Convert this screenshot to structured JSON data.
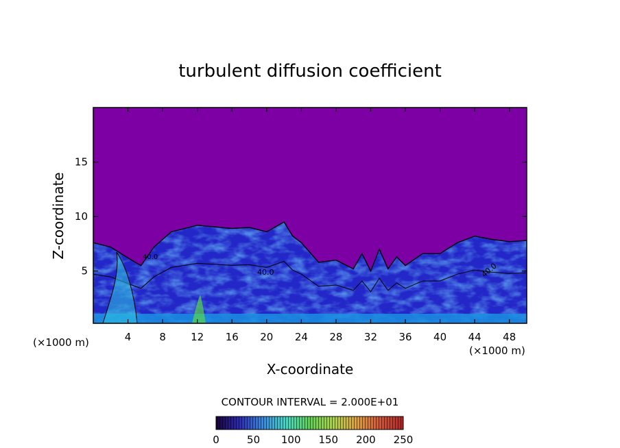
{
  "chart_data": {
    "type": "heatmap",
    "title": "turbulent diffusion coefficient",
    "xlabel": "X-coordinate",
    "ylabel": "Z-coordinate",
    "x_unit_left": "(×1000 m)",
    "x_unit_right": "(×1000 m)",
    "xlim": [
      0,
      50
    ],
    "ylim": [
      0.2,
      20
    ],
    "x_ticks": [
      "4",
      "8",
      "12",
      "16",
      "20",
      "24",
      "28",
      "32",
      "36",
      "40",
      "44",
      "48"
    ],
    "y_ticks": [
      "5",
      "10",
      "15"
    ],
    "contour_interval_text": "CONTOUR INTERVAL = 2.000E+01",
    "contour_labels": [
      "40.0",
      "40.0",
      "40.0"
    ],
    "colorbar": {
      "min": 0,
      "max": 250,
      "ticks": [
        "0",
        "50",
        "100",
        "150",
        "200",
        "250"
      ],
      "colors": [
        "#1a0040",
        "#2a28c8",
        "#2f8cf0",
        "#35e0c8",
        "#55d848",
        "#a8d838",
        "#e8a030",
        "#e05030",
        "#c02020"
      ]
    },
    "background_color": "#7c00a4",
    "turbulent_layer_top": [
      [
        0,
        7.6
      ],
      [
        2,
        7.2
      ],
      [
        4,
        6.2
      ],
      [
        5.5,
        5.5
      ],
      [
        7,
        7.2
      ],
      [
        9,
        8.6
      ],
      [
        12,
        9.2
      ],
      [
        16,
        8.9
      ],
      [
        18,
        9.0
      ],
      [
        20,
        8.6
      ],
      [
        22,
        9.5
      ],
      [
        23,
        8.2
      ],
      [
        24,
        7.6
      ],
      [
        26,
        5.8
      ],
      [
        28,
        6.0
      ],
      [
        30,
        5.2
      ],
      [
        31,
        6.6
      ],
      [
        32,
        5.0
      ],
      [
        33,
        7.0
      ],
      [
        34,
        5.2
      ],
      [
        35,
        6.3
      ],
      [
        36,
        5.5
      ],
      [
        38,
        6.6
      ],
      [
        40,
        6.6
      ],
      [
        42,
        7.6
      ],
      [
        44,
        8.2
      ],
      [
        46,
        7.9
      ],
      [
        48,
        7.7
      ],
      [
        50,
        7.8
      ]
    ]
  }
}
